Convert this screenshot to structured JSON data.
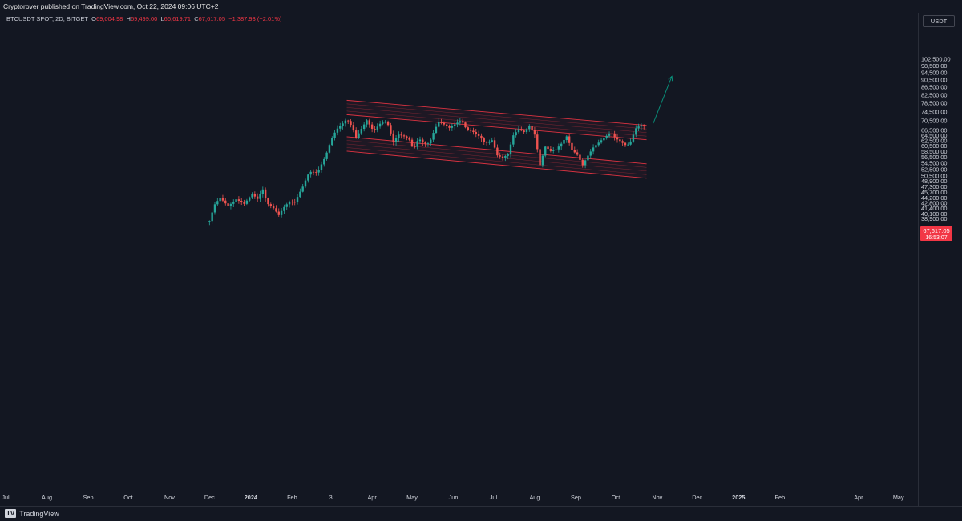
{
  "header": {
    "publish_line": "Cryptorover published on TradingView.com, Oct 22, 2024 09:06 UTC+2"
  },
  "legend": {
    "symbol": "BTCUSDT SPOT, 2D, BITGET",
    "open_key": "O",
    "open": "69,004.98",
    "high_key": "H",
    "high": "69,499.00",
    "low_key": "L",
    "low": "66,619.71",
    "close_key": "C",
    "close": "67,617.05",
    "change": "−1,387.93 (−2.01%)"
  },
  "price_scale": {
    "currency": "USDT",
    "last_price": "67,617.05",
    "countdown": "16:53:07",
    "ticks": [
      "102,500.00",
      "98,500.00",
      "94,500.00",
      "90,500.00",
      "86,500.00",
      "82,500.00",
      "78,500.00",
      "74,500.00",
      "70,500.00",
      "66,500.00",
      "64,500.00",
      "62,500.00",
      "60,500.00",
      "58,500.00",
      "56,500.00",
      "54,500.00",
      "52,500.00",
      "50,500.00",
      "48,900.00",
      "47,300.00",
      "45,700.00",
      "44,200.00",
      "42,800.00",
      "41,400.00",
      "40,100.00",
      "38,900.00"
    ]
  },
  "colors": {
    "background": "#131722",
    "up": "#26a69a",
    "down": "#ef5350",
    "channel": "#f23645",
    "projection": "#089981",
    "label_bg": "#f23645"
  },
  "footer": {
    "brand": "TradingView",
    "logo": "TV"
  },
  "chart_data": {
    "type": "candlestick",
    "symbol": "BTCUSDT SPOT",
    "interval": "2D",
    "y_scale": "log",
    "ylim": [
      38500,
      104000
    ],
    "xlim": [
      "2023-07-01",
      "2025-05-10"
    ],
    "x_tick_labels": [
      "Jul",
      "Aug",
      "Sep",
      "Oct",
      "Nov",
      "Dec",
      "2024",
      "Feb",
      "3",
      "Apr",
      "May",
      "Jun",
      "Jul",
      "Aug",
      "Sep",
      "Oct",
      "Nov",
      "Dec",
      "2025",
      "Feb",
      "Apr",
      "May"
    ],
    "x_tick_dates": [
      "2023-07-01",
      "2023-08-01",
      "2023-09-01",
      "2023-10-01",
      "2023-11-01",
      "2023-12-01",
      "2024-01-01",
      "2024-02-01",
      "2024-03-01",
      "2024-04-01",
      "2024-05-01",
      "2024-06-01",
      "2024-07-01",
      "2024-08-01",
      "2024-09-01",
      "2024-10-01",
      "2024-11-01",
      "2024-12-01",
      "2025-01-01",
      "2025-02-01",
      "2025-04-01",
      "2025-05-01"
    ],
    "anchors": [
      [
        "2023-12-01",
        38400
      ],
      [
        "2023-12-05",
        42500
      ],
      [
        "2023-12-09",
        44200
      ],
      [
        "2023-12-15",
        42000
      ],
      [
        "2023-12-21",
        43800
      ],
      [
        "2023-12-27",
        42600
      ],
      [
        "2024-01-02",
        45200
      ],
      [
        "2024-01-06",
        43900
      ],
      [
        "2024-01-10",
        46500
      ],
      [
        "2024-01-13",
        42800
      ],
      [
        "2024-01-18",
        41500
      ],
      [
        "2024-01-22",
        39800
      ],
      [
        "2024-01-26",
        41800
      ],
      [
        "2024-01-30",
        43200
      ],
      [
        "2024-02-03",
        43000
      ],
      [
        "2024-02-09",
        47300
      ],
      [
        "2024-02-14",
        51800
      ],
      [
        "2024-02-20",
        51500
      ],
      [
        "2024-02-26",
        56800
      ],
      [
        "2024-03-01",
        62300
      ],
      [
        "2024-03-05",
        66800
      ],
      [
        "2024-03-09",
        68800
      ],
      [
        "2024-03-13",
        71300
      ],
      [
        "2024-03-17",
        68000
      ],
      [
        "2024-03-20",
        63600
      ],
      [
        "2024-03-24",
        67200
      ],
      [
        "2024-03-28",
        70800
      ],
      [
        "2024-04-02",
        66300
      ],
      [
        "2024-04-07",
        69300
      ],
      [
        "2024-04-12",
        70500
      ],
      [
        "2024-04-17",
        61900
      ],
      [
        "2024-04-21",
        64900
      ],
      [
        "2024-04-25",
        64200
      ],
      [
        "2024-04-29",
        62900
      ],
      [
        "2024-05-02",
        59100
      ],
      [
        "2024-05-06",
        63500
      ],
      [
        "2024-05-10",
        61300
      ],
      [
        "2024-05-14",
        61600
      ],
      [
        "2024-05-18",
        66900
      ],
      [
        "2024-05-21",
        70200
      ],
      [
        "2024-05-25",
        69000
      ],
      [
        "2024-05-29",
        67600
      ],
      [
        "2024-06-03",
        69400
      ],
      [
        "2024-06-07",
        70800
      ],
      [
        "2024-06-11",
        66800
      ],
      [
        "2024-06-15",
        66300
      ],
      [
        "2024-06-21",
        64000
      ],
      [
        "2024-06-25",
        61500
      ],
      [
        "2024-06-30",
        62700
      ],
      [
        "2024-07-04",
        57200
      ],
      [
        "2024-07-08",
        56400
      ],
      [
        "2024-07-12",
        57600
      ],
      [
        "2024-07-16",
        64600
      ],
      [
        "2024-07-20",
        67100
      ],
      [
        "2024-07-24",
        65900
      ],
      [
        "2024-07-28",
        68300
      ],
      [
        "2024-08-01",
        64900
      ],
      [
        "2024-08-05",
        53900
      ],
      [
        "2024-08-09",
        60300
      ],
      [
        "2024-08-13",
        58700
      ],
      [
        "2024-08-17",
        59300
      ],
      [
        "2024-08-21",
        61400
      ],
      [
        "2024-08-25",
        64200
      ],
      [
        "2024-08-29",
        59100
      ],
      [
        "2024-09-02",
        57400
      ],
      [
        "2024-09-06",
        53900
      ],
      [
        "2024-09-10",
        57100
      ],
      [
        "2024-09-14",
        60000
      ],
      [
        "2024-09-18",
        61800
      ],
      [
        "2024-09-22",
        63600
      ],
      [
        "2024-09-27",
        65600
      ],
      [
        "2024-10-01",
        63300
      ],
      [
        "2024-10-05",
        62100
      ],
      [
        "2024-10-09",
        60500
      ],
      [
        "2024-10-13",
        62800
      ],
      [
        "2024-10-15",
        66900
      ],
      [
        "2024-10-17",
        67900
      ],
      [
        "2024-10-19",
        68400
      ],
      [
        "2024-10-21",
        69000
      ],
      [
        "2024-10-23",
        67617.05
      ]
    ],
    "annotations": {
      "descending_channel": {
        "upper_band": {
          "start": [
            "2024-03-13",
            76500
          ],
          "end": [
            "2024-10-24",
            65700
          ]
        },
        "lower_band": {
          "start": [
            "2024-03-13",
            61300
          ],
          "end": [
            "2024-10-24",
            52000
          ]
        }
      },
      "projection_arrow": {
        "start": [
          "2024-10-29",
          69500
        ],
        "end": [
          "2024-11-12",
          92500
        ]
      }
    }
  }
}
